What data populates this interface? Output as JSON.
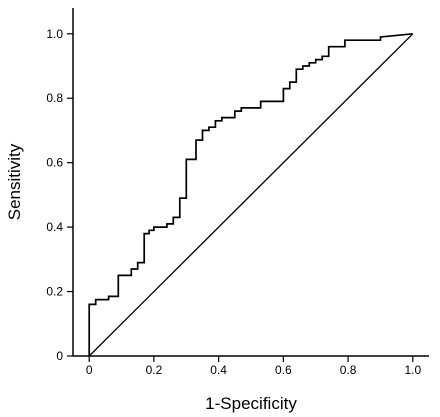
{
  "chart_data": {
    "type": "line",
    "title": "",
    "xlabel": "1-Specificity",
    "ylabel": "Sensitivity",
    "xlim": [
      -0.05,
      1.05
    ],
    "ylim": [
      0,
      1.08
    ],
    "grid": false,
    "legend": "none",
    "xticks": [
      0,
      0.2,
      0.4,
      0.6,
      0.8,
      1.0
    ],
    "xtick_labels": [
      "0",
      "0.2",
      "0.4",
      "0.6",
      "0.8",
      "1.0"
    ],
    "yticks": [
      0,
      0.2,
      0.4,
      0.6,
      0.8,
      1.0
    ],
    "ytick_labels": [
      "0",
      "0.2",
      "0.4",
      "0.6",
      "0.8",
      "1.0"
    ],
    "series": [
      {
        "type": "step",
        "color": "#000000",
        "x": [
          0,
          0,
          0.02,
          0.02,
          0.06,
          0.06,
          0.09,
          0.09,
          0.13,
          0.13,
          0.15,
          0.15,
          0.17,
          0.17,
          0.185,
          0.185,
          0.2,
          0.2,
          0.24,
          0.24,
          0.26,
          0.26,
          0.28,
          0.28,
          0.3,
          0.3,
          0.33,
          0.33,
          0.35,
          0.35,
          0.37,
          0.37,
          0.39,
          0.39,
          0.41,
          0.41,
          0.45,
          0.45,
          0.47,
          0.47,
          0.53,
          0.53,
          0.6,
          0.6,
          0.62,
          0.62,
          0.64,
          0.64,
          0.66,
          0.66,
          0.68,
          0.68,
          0.7,
          0.7,
          0.72,
          0.72,
          0.74,
          0.74,
          0.79,
          0.79,
          0.9,
          0.9,
          1.0
        ],
        "y": [
          0,
          0.16,
          0.16,
          0.175,
          0.175,
          0.185,
          0.185,
          0.25,
          0.25,
          0.27,
          0.27,
          0.29,
          0.29,
          0.38,
          0.38,
          0.39,
          0.39,
          0.4,
          0.4,
          0.41,
          0.41,
          0.43,
          0.43,
          0.49,
          0.49,
          0.61,
          0.61,
          0.67,
          0.67,
          0.7,
          0.7,
          0.71,
          0.71,
          0.73,
          0.73,
          0.74,
          0.74,
          0.76,
          0.76,
          0.77,
          0.77,
          0.79,
          0.79,
          0.83,
          0.83,
          0.85,
          0.85,
          0.89,
          0.89,
          0.9,
          0.9,
          0.91,
          0.91,
          0.92,
          0.92,
          0.93,
          0.93,
          0.96,
          0.96,
          0.98,
          0.98,
          0.99,
          1.0
        ]
      },
      {
        "type": "reference",
        "color": "#000000",
        "x": [
          0,
          1.0
        ],
        "y": [
          0,
          1.0
        ]
      }
    ]
  }
}
